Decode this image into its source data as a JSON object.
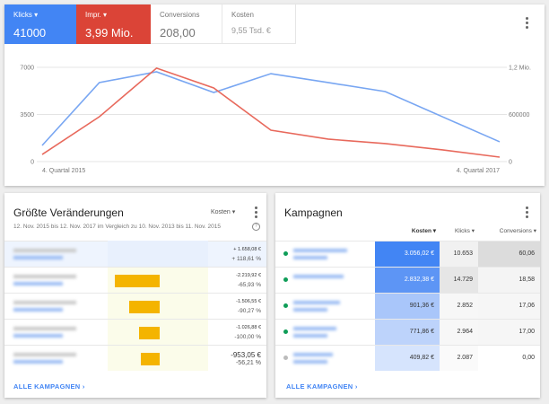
{
  "metrics": [
    {
      "label": "Klicks",
      "value": "41000"
    },
    {
      "label": "Impr.",
      "value": "3,99 Mio."
    },
    {
      "label": "Conversions",
      "value": "208,00"
    },
    {
      "label": "Kosten",
      "value": "9,55 Tsd. €"
    }
  ],
  "chart_data": {
    "type": "line",
    "categories": [
      "4. Quartal 2015",
      null,
      null,
      null,
      null,
      null,
      null,
      null,
      "4. Quartal 2017"
    ],
    "series": [
      {
        "color": "#78a6f2",
        "values": [
          1200,
          5870,
          6670,
          5130,
          6530,
          5870,
          5200,
          3330,
          1470
        ]
      },
      {
        "color": "#e8695c",
        "axis": "y2",
        "values": [
          91000,
          571000,
          1190000,
          937000,
          400000,
          286000,
          229000,
          149000,
          57000
        ]
      }
    ],
    "ylim": [
      0,
      7000
    ],
    "yticks": [
      0,
      3500,
      7000
    ],
    "y2lim": [
      0,
      1200000
    ],
    "y2ticks": [
      0,
      600000,
      {
        "value": 1200000,
        "label": "1,2 Mio."
      }
    ],
    "grid": true
  },
  "changes": {
    "title": "Größte Veränderungen",
    "sort": "Kosten",
    "subtitle": "12. Nov. 2015 bis 12. Nov. 2017 im Vergleich zu 10. Nov. 2013 bis 11. Nov. 2015",
    "values": [
      1658.08,
      -2219.92,
      -1506.55,
      -1026.88,
      -953.05
    ],
    "value_labels": [
      "+ 1.658,08 €",
      "-2.219,92 €",
      "-1.506,55 €",
      "-1.026,88 €",
      "-953,05 €"
    ],
    "percents": [
      "+ 118,61 %",
      "-65,93 %",
      "-90,27 %",
      "-100,00 %",
      "-56,21 %"
    ],
    "link": "ALLE KAMPAGNEN"
  },
  "campaigns": {
    "title": "Kampagnen",
    "columns": [
      "Kosten",
      "Klicks",
      "Conversions"
    ],
    "rows": [
      [
        "3.056,02 €",
        "10.653",
        "60,06"
      ],
      [
        "2.832,38 €",
        "14.729",
        "18,58"
      ],
      [
        "901,36 €",
        "2.852",
        "17,06"
      ],
      [
        "771,86 €",
        "2.964",
        "17,00"
      ],
      [
        "409,82 €",
        "2.087",
        "0,00"
      ]
    ],
    "link": "ALLE KAMPAGNEN"
  }
}
